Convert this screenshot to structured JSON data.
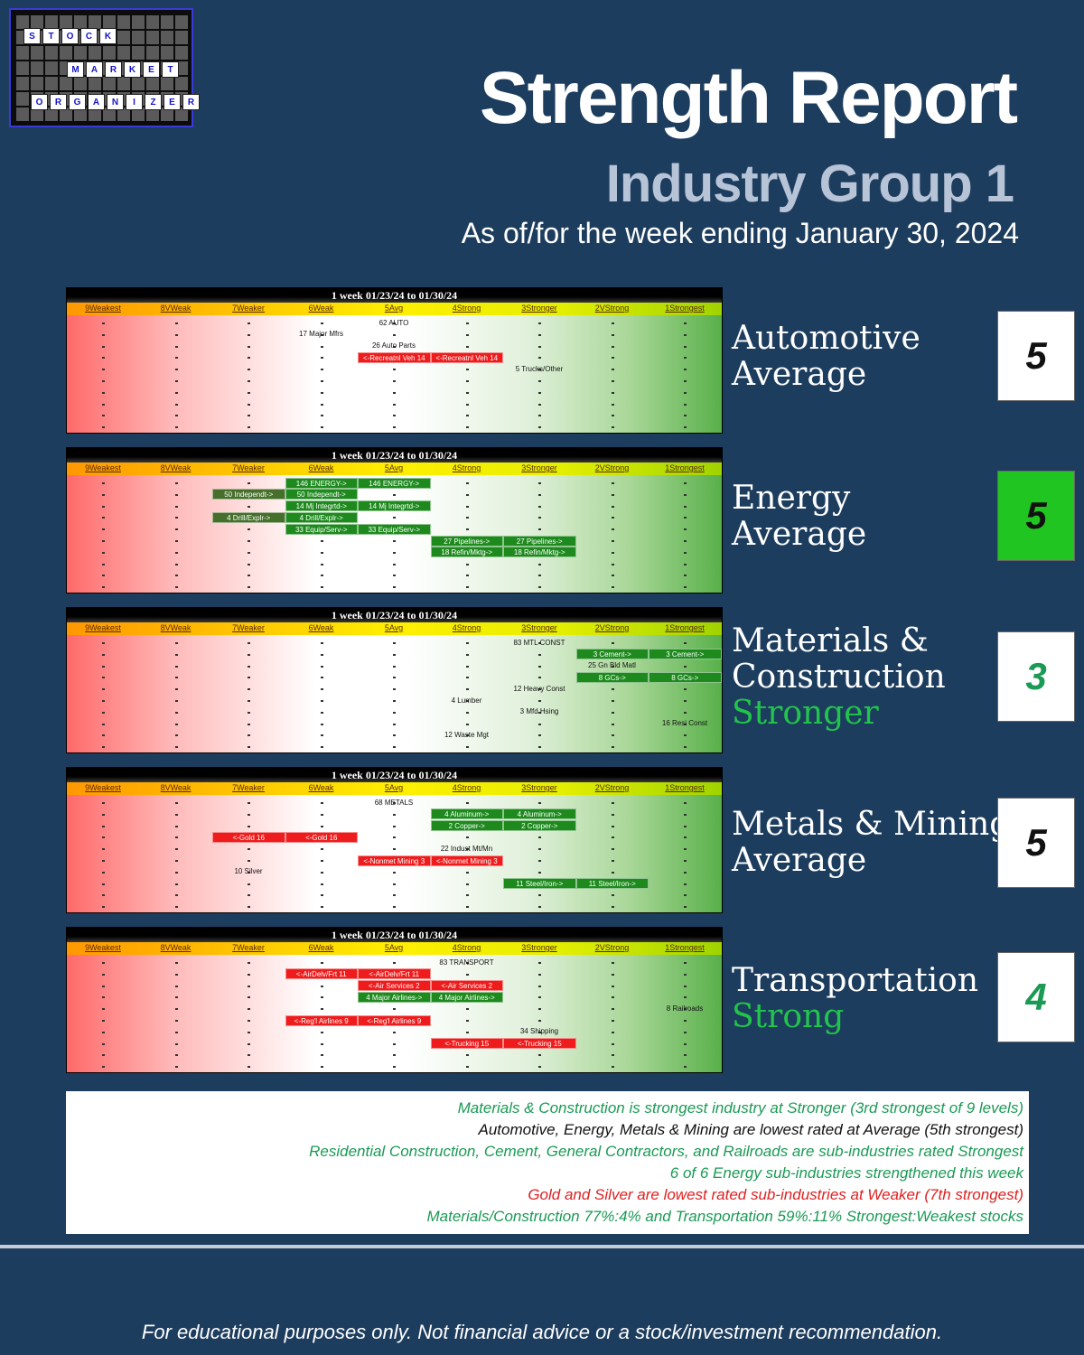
{
  "logo": {
    "row1": [
      "S",
      "T",
      "O",
      "C",
      "K"
    ],
    "row2": [
      "M",
      "A",
      "R",
      "K",
      "E",
      "T"
    ],
    "row3": [
      "O",
      "R",
      "G",
      "A",
      "N",
      "I",
      "Z",
      "E",
      "R"
    ]
  },
  "header": {
    "title": "Strength Report",
    "subtitle": "Industry Group 1",
    "asof": "As of/for the week ending January 30, 2024"
  },
  "levels": [
    "9Weakest",
    "8VWeak",
    "7Weaker",
    "6Weak",
    "5Avg",
    "4Strong",
    "3Stronger",
    "2VStrong",
    "1Strongest"
  ],
  "chart_data": [
    {
      "type": "table",
      "title": "1 week 01/23/24 to 01/30/24",
      "industry": "Automotive",
      "rating": "Average",
      "rating_num": "5",
      "items": [
        {
          "label": "62 AUTO",
          "level": 5,
          "row": 0,
          "style": "free"
        },
        {
          "label": "17 Major Mfrs",
          "level": 6,
          "row": 1,
          "style": "free"
        },
        {
          "label": "26 Auto Parts",
          "level": 5,
          "row": 2,
          "style": "free"
        },
        {
          "label": "<-Recreatnl Veh 14",
          "level": 5,
          "to_level": 5,
          "row": 3,
          "style": "red"
        },
        {
          "label": "<-Recreatnl Veh 14",
          "level": 4,
          "to_level": 4,
          "row": 3,
          "style": "red"
        },
        {
          "label": "5 Trucks/Other",
          "level": 3,
          "row": 4,
          "style": "free"
        }
      ]
    },
    {
      "type": "table",
      "title": "1 week 01/23/24 to 01/30/24",
      "industry": "Energy",
      "rating": "Average",
      "rating_num": "5",
      "items": [
        {
          "label": "146 ENERGY->",
          "level": 6,
          "row": 0,
          "style": "green"
        },
        {
          "label": "146 ENERGY->",
          "level": 5,
          "row": 0,
          "style": "green"
        },
        {
          "label": "50 Independt->",
          "level": 7,
          "row": 1,
          "style": "dgreen"
        },
        {
          "label": "50 Independt->",
          "level": 6,
          "row": 1,
          "style": "green"
        },
        {
          "label": "14 Mj Integrtd->",
          "level": 6,
          "row": 2,
          "style": "green"
        },
        {
          "label": "14 Mj Integrtd->",
          "level": 5,
          "row": 2,
          "style": "green"
        },
        {
          "label": "4 Drill/Explr->",
          "level": 7,
          "row": 3,
          "style": "dgreen"
        },
        {
          "label": "4 Drill/Explr->",
          "level": 6,
          "row": 3,
          "style": "green"
        },
        {
          "label": "33 Equip/Serv->",
          "level": 6,
          "row": 4,
          "style": "green"
        },
        {
          "label": "33 Equip/Serv->",
          "level": 5,
          "row": 4,
          "style": "green"
        },
        {
          "label": "27 Pipelines->",
          "level": 4,
          "row": 5,
          "style": "green"
        },
        {
          "label": "27 Pipelines->",
          "level": 3,
          "row": 5,
          "style": "green"
        },
        {
          "label": "18 Refin/Mktg->",
          "level": 4,
          "row": 6,
          "style": "green"
        },
        {
          "label": "18 Refin/Mktg->",
          "level": 3,
          "row": 6,
          "style": "green"
        }
      ]
    },
    {
      "type": "table",
      "title": "1 week 01/23/24 to 01/30/24",
      "industry": "Materials & Construction",
      "rating": "Stronger",
      "rating_num": "3",
      "items": [
        {
          "label": "83 MTL CONST",
          "level": 3,
          "row": 0,
          "style": "free"
        },
        {
          "label": "3 Cement->",
          "level": 2,
          "row": 1,
          "style": "green"
        },
        {
          "label": "3 Cement->",
          "level": 1,
          "row": 1,
          "style": "green"
        },
        {
          "label": "25 Gn Bld Matl",
          "level": 2,
          "row": 2,
          "style": "free"
        },
        {
          "label": "8 GCs->",
          "level": 2,
          "row": 3,
          "style": "green"
        },
        {
          "label": "8 GCs->",
          "level": 1,
          "row": 3,
          "style": "green"
        },
        {
          "label": "12 Heavy Const",
          "level": 3,
          "row": 4,
          "style": "free"
        },
        {
          "label": "4 Lumber",
          "level": 4,
          "row": 5,
          "style": "free"
        },
        {
          "label": "3 Mfd Hsing",
          "level": 3,
          "row": 6,
          "style": "free"
        },
        {
          "label": "16 Resi Const",
          "level": 1,
          "row": 7,
          "style": "free"
        },
        {
          "label": "12 Waste Mgt",
          "level": 4,
          "row": 8,
          "style": "free"
        }
      ]
    },
    {
      "type": "table",
      "title": "1 week 01/23/24 to 01/30/24",
      "industry": "Metals & Mining",
      "rating": "Average",
      "rating_num": "5",
      "items": [
        {
          "label": "68 METALS",
          "level": 5,
          "row": 0,
          "style": "free"
        },
        {
          "label": "4 Aluminum->",
          "level": 4,
          "row": 1,
          "style": "green"
        },
        {
          "label": "4 Aluminum->",
          "level": 3,
          "row": 1,
          "style": "green"
        },
        {
          "label": "2 Copper->",
          "level": 4,
          "row": 2,
          "style": "green"
        },
        {
          "label": "2 Copper->",
          "level": 3,
          "row": 2,
          "style": "green"
        },
        {
          "label": "<-Gold 16",
          "level": 7,
          "row": 3,
          "style": "red"
        },
        {
          "label": "<-Gold 16",
          "level": 6,
          "row": 3,
          "style": "red"
        },
        {
          "label": "22 Indust Mt/Mn",
          "level": 4,
          "row": 4,
          "style": "free"
        },
        {
          "label": "<-Nonmet Mining 3",
          "level": 5,
          "row": 5,
          "style": "red"
        },
        {
          "label": "<-Nonmet Mining 3",
          "level": 4,
          "row": 5,
          "style": "red"
        },
        {
          "label": "10 Silver",
          "level": 7,
          "row": 6,
          "style": "free"
        },
        {
          "label": "11 Steel/Iron->",
          "level": 3,
          "row": 7,
          "style": "green"
        },
        {
          "label": "11 Steel/Iron->",
          "level": 2,
          "row": 7,
          "style": "green"
        }
      ]
    },
    {
      "type": "table",
      "title": "1 week 01/23/24 to 01/30/24",
      "industry": "Transportation",
      "rating": "Strong",
      "rating_num": "4",
      "items": [
        {
          "label": "83 TRANSPORT",
          "level": 4,
          "row": 0,
          "style": "free"
        },
        {
          "label": "<-AirDelv/Frt 11",
          "level": 6,
          "row": 1,
          "style": "red"
        },
        {
          "label": "<-AirDelv/Frt 11",
          "level": 5,
          "row": 1,
          "style": "red"
        },
        {
          "label": "<-Air Services 2",
          "level": 5,
          "row": 2,
          "style": "red"
        },
        {
          "label": "<-Air Services 2",
          "level": 4,
          "row": 2,
          "style": "red"
        },
        {
          "label": "4 Major Airlines->",
          "level": 5,
          "row": 3,
          "style": "green"
        },
        {
          "label": "4 Major Airlines->",
          "level": 4,
          "row": 3,
          "style": "green"
        },
        {
          "label": "8 Railroads",
          "level": 1,
          "row": 4,
          "style": "free"
        },
        {
          "label": "<-Reg'l Airlines 9",
          "level": 6,
          "row": 5,
          "style": "red"
        },
        {
          "label": "<-Reg'l Airlines 9",
          "level": 5,
          "row": 5,
          "style": "red"
        },
        {
          "label": "34 Shipping",
          "level": 3,
          "row": 6,
          "style": "free"
        },
        {
          "label": "<-Trucking 15",
          "level": 4,
          "row": 7,
          "style": "red"
        },
        {
          "label": "<-Trucking 15",
          "level": 3,
          "row": 7,
          "style": "red"
        }
      ]
    }
  ],
  "right_labels": [
    {
      "line1": "Automotive",
      "line2": "Average",
      "line3": "",
      "green_line": "",
      "rating": "5",
      "box": "white"
    },
    {
      "line1": "Energy",
      "line2": "Average",
      "line3": "",
      "green_line": "",
      "rating": "5",
      "box": "green"
    },
    {
      "line1": "Materials &",
      "line2": "Construction",
      "line3": "",
      "green_line": "Stronger",
      "rating": "3",
      "box": "white-greentext"
    },
    {
      "line1": "Metals & Mining",
      "line2": "Average",
      "line3": "",
      "green_line": "",
      "rating": "5",
      "box": "white"
    },
    {
      "line1": "Transportation",
      "line2": "",
      "line3": "",
      "green_line": "Strong",
      "rating": "4",
      "box": "white-greentext"
    }
  ],
  "notes": [
    {
      "text": "Materials & Construction is strongest industry at Stronger (3rd strongest of 9 levels)",
      "color": "#1a9a55"
    },
    {
      "text": "Automotive, Energy, Metals & Mining are lowest rated at Average (5th strongest)",
      "color": "#111111"
    },
    {
      "text": "Residential Construction, Cement, General Contractors, and Railroads are sub-industries rated Strongest",
      "color": "#1a9a55"
    },
    {
      "text": "6 of 6 Energy sub-industries strengthened this week",
      "color": "#1a9a55"
    },
    {
      "text": "Gold and Silver are lowest rated sub-industries at Weaker (7th strongest)",
      "color": "#e02020"
    },
    {
      "text": "Materials/Construction 77%:4% and Transportation 59%:11% Strongest:Weakest stocks",
      "color": "#1a9a55"
    }
  ],
  "footer": "For educational purposes only. Not financial advice or a stock/investment recommendation.",
  "colors": {
    "background": "#1d3d5e",
    "green": "#21c54b",
    "red": "#ee1c1c"
  }
}
